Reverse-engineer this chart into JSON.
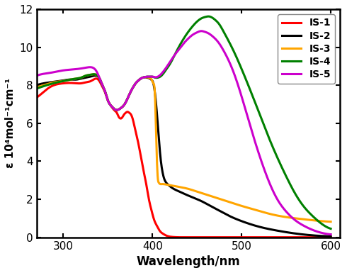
{
  "title": "",
  "xlabel": "Wavelength/nm",
  "ylabel": "ε 10⁴mol⁻¹cm⁻¹",
  "xlim": [
    270,
    610
  ],
  "ylim": [
    0,
    12
  ],
  "yticks": [
    0,
    2,
    4,
    6,
    8,
    10,
    12
  ],
  "xticks": [
    300,
    400,
    500,
    600
  ],
  "series": [
    {
      "label": "IS-1",
      "color": "#ff0000",
      "points": [
        [
          270,
          7.35
        ],
        [
          278,
          7.65
        ],
        [
          285,
          7.9
        ],
        [
          293,
          8.05
        ],
        [
          300,
          8.1
        ],
        [
          308,
          8.12
        ],
        [
          315,
          8.1
        ],
        [
          320,
          8.1
        ],
        [
          325,
          8.15
        ],
        [
          330,
          8.2
        ],
        [
          334,
          8.3
        ],
        [
          337,
          8.35
        ],
        [
          340,
          8.25
        ],
        [
          343,
          8.0
        ],
        [
          347,
          7.6
        ],
        [
          350,
          7.2
        ],
        [
          353,
          6.95
        ],
        [
          356,
          6.75
        ],
        [
          358,
          6.65
        ],
        [
          360,
          6.55
        ],
        [
          362,
          6.35
        ],
        [
          364,
          6.25
        ],
        [
          366,
          6.3
        ],
        [
          368,
          6.45
        ],
        [
          370,
          6.55
        ],
        [
          372,
          6.6
        ],
        [
          374,
          6.55
        ],
        [
          376,
          6.45
        ],
        [
          378,
          6.2
        ],
        [
          380,
          5.8
        ],
        [
          383,
          5.2
        ],
        [
          386,
          4.5
        ],
        [
          390,
          3.5
        ],
        [
          393,
          2.8
        ],
        [
          396,
          2.0
        ],
        [
          399,
          1.4
        ],
        [
          402,
          0.9
        ],
        [
          405,
          0.6
        ],
        [
          408,
          0.35
        ],
        [
          412,
          0.18
        ],
        [
          416,
          0.08
        ],
        [
          422,
          0.02
        ],
        [
          435,
          0.0
        ],
        [
          500,
          0.0
        ],
        [
          600,
          0.0
        ]
      ]
    },
    {
      "label": "IS-2",
      "color": "#000000",
      "points": [
        [
          270,
          8.0
        ],
        [
          278,
          8.1
        ],
        [
          285,
          8.15
        ],
        [
          293,
          8.2
        ],
        [
          300,
          8.25
        ],
        [
          308,
          8.3
        ],
        [
          315,
          8.3
        ],
        [
          320,
          8.35
        ],
        [
          325,
          8.4
        ],
        [
          330,
          8.45
        ],
        [
          334,
          8.5
        ],
        [
          337,
          8.5
        ],
        [
          340,
          8.4
        ],
        [
          343,
          8.1
        ],
        [
          347,
          7.65
        ],
        [
          350,
          7.2
        ],
        [
          353,
          6.95
        ],
        [
          356,
          6.8
        ],
        [
          358,
          6.72
        ],
        [
          360,
          6.7
        ],
        [
          362,
          6.72
        ],
        [
          364,
          6.78
        ],
        [
          366,
          6.85
        ],
        [
          368,
          6.95
        ],
        [
          370,
          7.1
        ],
        [
          373,
          7.4
        ],
        [
          376,
          7.7
        ],
        [
          379,
          7.95
        ],
        [
          382,
          8.15
        ],
        [
          385,
          8.28
        ],
        [
          388,
          8.38
        ],
        [
          391,
          8.42
        ],
        [
          394,
          8.4
        ],
        [
          397,
          8.35
        ],
        [
          399,
          8.28
        ],
        [
          401,
          8.1
        ],
        [
          403,
          7.5
        ],
        [
          405,
          6.5
        ],
        [
          407,
          5.3
        ],
        [
          409,
          4.2
        ],
        [
          411,
          3.5
        ],
        [
          413,
          3.1
        ],
        [
          415,
          2.9
        ],
        [
          418,
          2.75
        ],
        [
          422,
          2.6
        ],
        [
          428,
          2.45
        ],
        [
          435,
          2.3
        ],
        [
          445,
          2.1
        ],
        [
          455,
          1.9
        ],
        [
          465,
          1.65
        ],
        [
          475,
          1.4
        ],
        [
          485,
          1.15
        ],
        [
          500,
          0.85
        ],
        [
          520,
          0.55
        ],
        [
          540,
          0.35
        ],
        [
          560,
          0.2
        ],
        [
          580,
          0.1
        ],
        [
          600,
          0.05
        ]
      ]
    },
    {
      "label": "IS-3",
      "color": "#ffa500",
      "points": [
        [
          270,
          7.9
        ],
        [
          278,
          8.0
        ],
        [
          285,
          8.1
        ],
        [
          293,
          8.18
        ],
        [
          300,
          8.22
        ],
        [
          308,
          8.3
        ],
        [
          315,
          8.35
        ],
        [
          320,
          8.4
        ],
        [
          325,
          8.5
        ],
        [
          330,
          8.55
        ],
        [
          334,
          8.58
        ],
        [
          337,
          8.55
        ],
        [
          340,
          8.42
        ],
        [
          343,
          8.1
        ],
        [
          347,
          7.65
        ],
        [
          350,
          7.2
        ],
        [
          353,
          6.95
        ],
        [
          356,
          6.8
        ],
        [
          358,
          6.72
        ],
        [
          360,
          6.7
        ],
        [
          362,
          6.72
        ],
        [
          364,
          6.78
        ],
        [
          366,
          6.85
        ],
        [
          368,
          6.95
        ],
        [
          370,
          7.1
        ],
        [
          373,
          7.4
        ],
        [
          376,
          7.7
        ],
        [
          379,
          7.95
        ],
        [
          382,
          8.15
        ],
        [
          385,
          8.28
        ],
        [
          388,
          8.38
        ],
        [
          391,
          8.42
        ],
        [
          394,
          8.42
        ],
        [
          397,
          8.38
        ],
        [
          399,
          8.3
        ],
        [
          401,
          8.1
        ],
        [
          403,
          7.2
        ],
        [
          404,
          5.5
        ],
        [
          405,
          4.0
        ],
        [
          406,
          3.1
        ],
        [
          407,
          2.88
        ],
        [
          408,
          2.82
        ],
        [
          410,
          2.8
        ],
        [
          415,
          2.78
        ],
        [
          422,
          2.72
        ],
        [
          430,
          2.65
        ],
        [
          440,
          2.55
        ],
        [
          450,
          2.4
        ],
        [
          460,
          2.25
        ],
        [
          470,
          2.1
        ],
        [
          480,
          1.95
        ],
        [
          490,
          1.8
        ],
        [
          500,
          1.65
        ],
        [
          515,
          1.45
        ],
        [
          530,
          1.25
        ],
        [
          545,
          1.1
        ],
        [
          560,
          1.0
        ],
        [
          575,
          0.92
        ],
        [
          590,
          0.85
        ],
        [
          600,
          0.82
        ]
      ]
    },
    {
      "label": "IS-4",
      "color": "#008000",
      "points": [
        [
          270,
          7.82
        ],
        [
          278,
          7.95
        ],
        [
          285,
          8.05
        ],
        [
          293,
          8.15
        ],
        [
          300,
          8.22
        ],
        [
          308,
          8.3
        ],
        [
          315,
          8.35
        ],
        [
          320,
          8.4
        ],
        [
          325,
          8.5
        ],
        [
          330,
          8.55
        ],
        [
          334,
          8.58
        ],
        [
          337,
          8.55
        ],
        [
          340,
          8.42
        ],
        [
          343,
          8.1
        ],
        [
          347,
          7.65
        ],
        [
          350,
          7.2
        ],
        [
          353,
          6.95
        ],
        [
          356,
          6.8
        ],
        [
          358,
          6.72
        ],
        [
          360,
          6.7
        ],
        [
          362,
          6.72
        ],
        [
          364,
          6.78
        ],
        [
          366,
          6.85
        ],
        [
          368,
          6.95
        ],
        [
          370,
          7.1
        ],
        [
          373,
          7.4
        ],
        [
          376,
          7.7
        ],
        [
          379,
          7.95
        ],
        [
          382,
          8.15
        ],
        [
          385,
          8.28
        ],
        [
          388,
          8.38
        ],
        [
          391,
          8.42
        ],
        [
          394,
          8.45
        ],
        [
          397,
          8.45
        ],
        [
          400,
          8.45
        ],
        [
          403,
          8.4
        ],
        [
          406,
          8.4
        ],
        [
          410,
          8.5
        ],
        [
          415,
          8.8
        ],
        [
          420,
          9.15
        ],
        [
          425,
          9.6
        ],
        [
          430,
          10.05
        ],
        [
          435,
          10.45
        ],
        [
          440,
          10.8
        ],
        [
          445,
          11.1
        ],
        [
          450,
          11.35
        ],
        [
          455,
          11.52
        ],
        [
          460,
          11.6
        ],
        [
          463,
          11.62
        ],
        [
          466,
          11.58
        ],
        [
          470,
          11.45
        ],
        [
          475,
          11.2
        ],
        [
          480,
          10.8
        ],
        [
          490,
          9.9
        ],
        [
          500,
          8.85
        ],
        [
          510,
          7.7
        ],
        [
          520,
          6.5
        ],
        [
          530,
          5.3
        ],
        [
          540,
          4.2
        ],
        [
          550,
          3.2
        ],
        [
          560,
          2.3
        ],
        [
          570,
          1.6
        ],
        [
          580,
          1.1
        ],
        [
          590,
          0.7
        ],
        [
          600,
          0.45
        ]
      ]
    },
    {
      "label": "IS-5",
      "color": "#cc00cc",
      "points": [
        [
          270,
          8.5
        ],
        [
          278,
          8.6
        ],
        [
          285,
          8.65
        ],
        [
          293,
          8.72
        ],
        [
          300,
          8.78
        ],
        [
          308,
          8.82
        ],
        [
          315,
          8.85
        ],
        [
          320,
          8.88
        ],
        [
          325,
          8.92
        ],
        [
          330,
          8.95
        ],
        [
          334,
          8.9
        ],
        [
          337,
          8.75
        ],
        [
          340,
          8.45
        ],
        [
          343,
          8.1
        ],
        [
          347,
          7.65
        ],
        [
          350,
          7.2
        ],
        [
          353,
          6.95
        ],
        [
          356,
          6.8
        ],
        [
          358,
          6.72
        ],
        [
          360,
          6.7
        ],
        [
          362,
          6.72
        ],
        [
          364,
          6.78
        ],
        [
          366,
          6.85
        ],
        [
          368,
          6.95
        ],
        [
          370,
          7.1
        ],
        [
          373,
          7.4
        ],
        [
          376,
          7.7
        ],
        [
          379,
          7.95
        ],
        [
          382,
          8.15
        ],
        [
          385,
          8.28
        ],
        [
          388,
          8.38
        ],
        [
          391,
          8.42
        ],
        [
          394,
          8.45
        ],
        [
          397,
          8.45
        ],
        [
          400,
          8.45
        ],
        [
          403,
          8.42
        ],
        [
          406,
          8.45
        ],
        [
          410,
          8.6
        ],
        [
          415,
          8.9
        ],
        [
          420,
          9.25
        ],
        [
          425,
          9.6
        ],
        [
          430,
          9.9
        ],
        [
          435,
          10.2
        ],
        [
          440,
          10.45
        ],
        [
          445,
          10.65
        ],
        [
          450,
          10.78
        ],
        [
          455,
          10.85
        ],
        [
          458,
          10.82
        ],
        [
          462,
          10.75
        ],
        [
          468,
          10.55
        ],
        [
          474,
          10.25
        ],
        [
          480,
          9.8
        ],
        [
          490,
          8.8
        ],
        [
          500,
          7.4
        ],
        [
          510,
          5.8
        ],
        [
          520,
          4.3
        ],
        [
          530,
          3.0
        ],
        [
          540,
          2.0
        ],
        [
          550,
          1.35
        ],
        [
          560,
          0.9
        ],
        [
          570,
          0.6
        ],
        [
          580,
          0.38
        ],
        [
          590,
          0.23
        ],
        [
          600,
          0.15
        ]
      ]
    }
  ],
  "legend_loc": "upper right",
  "linewidth": 2.2,
  "background_color": "#ffffff"
}
